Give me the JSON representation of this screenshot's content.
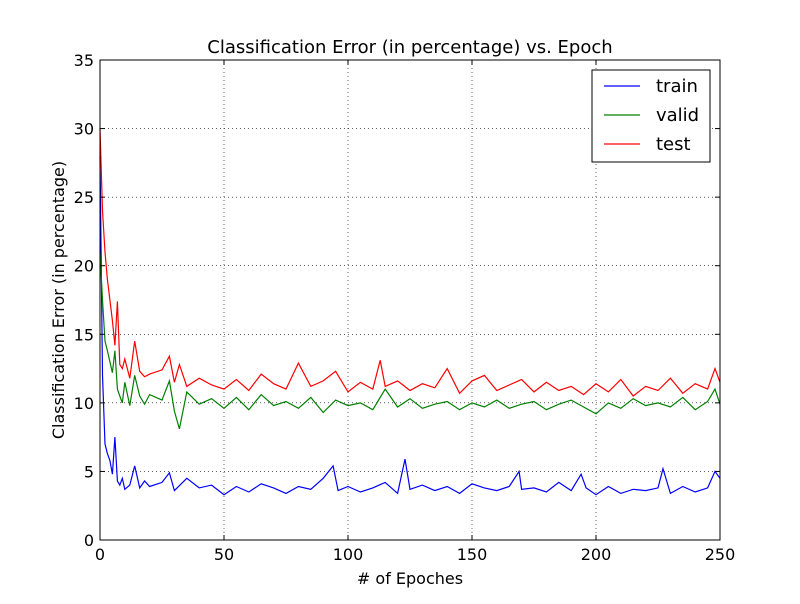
{
  "chart_data": {
    "type": "line",
    "title": "Classification Error (in percentage) vs. Epoch",
    "xlabel": "# of Epoches",
    "ylabel": "Classification Error (in percentage)",
    "xlim": [
      0,
      250
    ],
    "ylim": [
      0,
      35
    ],
    "xticks": [
      0,
      50,
      100,
      150,
      200,
      250
    ],
    "yticks": [
      0,
      5,
      10,
      15,
      20,
      25,
      30,
      35
    ],
    "grid": true,
    "legend_position": "top-right",
    "series": [
      {
        "name": "train",
        "color": "#0000ff",
        "x": [
          0,
          1,
          2,
          3,
          4,
          5,
          6,
          7,
          8,
          9,
          10,
          12,
          14,
          16,
          18,
          20,
          25,
          28,
          30,
          35,
          40,
          45,
          50,
          55,
          60,
          65,
          70,
          75,
          80,
          85,
          90,
          94,
          96,
          100,
          105,
          110,
          115,
          120,
          123,
          125,
          130,
          135,
          140,
          145,
          150,
          155,
          160,
          165,
          169,
          170,
          175,
          180,
          185,
          190,
          194,
          196,
          200,
          205,
          210,
          215,
          220,
          225,
          227,
          230,
          235,
          240,
          245,
          248,
          250
        ],
        "values": [
          28.0,
          12.0,
          7.0,
          6.3,
          5.8,
          4.8,
          7.5,
          4.3,
          4.0,
          4.5,
          3.7,
          4.0,
          5.4,
          3.8,
          4.3,
          3.9,
          4.2,
          4.9,
          3.6,
          4.5,
          3.8,
          4.0,
          3.3,
          3.9,
          3.5,
          4.1,
          3.8,
          3.4,
          3.9,
          3.7,
          4.5,
          5.4,
          3.6,
          3.9,
          3.5,
          3.8,
          4.2,
          3.4,
          5.9,
          3.7,
          4.0,
          3.6,
          3.9,
          3.4,
          4.1,
          3.8,
          3.6,
          3.9,
          5.0,
          3.7,
          3.8,
          3.5,
          4.2,
          3.6,
          4.8,
          3.8,
          3.3,
          3.9,
          3.4,
          3.7,
          3.6,
          3.8,
          5.2,
          3.4,
          3.9,
          3.5,
          3.8,
          5.0,
          4.5
        ]
      },
      {
        "name": "valid",
        "color": "#008000",
        "x": [
          0,
          1,
          2,
          3,
          4,
          5,
          6,
          7,
          8,
          9,
          10,
          12,
          14,
          16,
          18,
          20,
          25,
          28,
          30,
          32,
          35,
          40,
          45,
          50,
          55,
          60,
          65,
          70,
          75,
          80,
          85,
          90,
          95,
          100,
          105,
          110,
          115,
          120,
          125,
          130,
          135,
          140,
          145,
          150,
          155,
          160,
          165,
          170,
          175,
          180,
          185,
          190,
          195,
          200,
          205,
          210,
          215,
          220,
          225,
          230,
          235,
          240,
          245,
          248,
          250
        ],
        "values": [
          21.0,
          17.5,
          14.5,
          13.8,
          13.0,
          12.2,
          13.8,
          11.0,
          10.5,
          10.0,
          11.5,
          9.8,
          12.0,
          10.5,
          9.9,
          10.6,
          10.2,
          11.6,
          9.4,
          8.1,
          10.8,
          9.9,
          10.3,
          9.6,
          10.4,
          9.5,
          10.6,
          9.8,
          10.1,
          9.6,
          10.4,
          9.3,
          10.2,
          9.8,
          10.0,
          9.5,
          11.0,
          9.7,
          10.3,
          9.6,
          9.9,
          10.1,
          9.5,
          10.0,
          9.7,
          10.2,
          9.6,
          9.9,
          10.1,
          9.5,
          9.9,
          10.2,
          9.7,
          9.2,
          10.0,
          9.6,
          10.3,
          9.8,
          10.0,
          9.7,
          10.4,
          9.5,
          10.1,
          11.0,
          9.9
        ]
      },
      {
        "name": "test",
        "color": "#ff0000",
        "x": [
          0,
          1,
          2,
          3,
          4,
          5,
          6,
          7,
          8,
          9,
          10,
          12,
          14,
          16,
          18,
          20,
          25,
          28,
          30,
          32,
          35,
          40,
          45,
          50,
          55,
          60,
          65,
          70,
          75,
          80,
          85,
          90,
          95,
          100,
          105,
          110,
          113,
          115,
          120,
          125,
          130,
          135,
          140,
          145,
          150,
          155,
          160,
          165,
          170,
          175,
          180,
          185,
          190,
          195,
          200,
          205,
          210,
          215,
          220,
          225,
          230,
          235,
          240,
          245,
          248,
          250
        ],
        "values": [
          30.0,
          24.0,
          21.0,
          19.0,
          17.5,
          16.0,
          14.2,
          17.4,
          12.8,
          12.5,
          13.2,
          11.8,
          14.5,
          12.3,
          11.9,
          12.1,
          12.4,
          13.4,
          11.5,
          12.8,
          11.2,
          11.8,
          11.3,
          11.0,
          11.7,
          10.9,
          12.1,
          11.4,
          11.0,
          12.9,
          11.2,
          11.6,
          12.3,
          10.8,
          11.5,
          11.0,
          13.1,
          11.2,
          11.6,
          10.9,
          11.4,
          11.1,
          12.5,
          10.7,
          11.6,
          12.0,
          10.9,
          11.3,
          11.7,
          10.8,
          11.5,
          10.9,
          11.2,
          10.6,
          11.4,
          10.8,
          11.7,
          10.5,
          11.2,
          10.9,
          11.8,
          10.7,
          11.4,
          11.0,
          12.5,
          11.5
        ]
      }
    ]
  }
}
